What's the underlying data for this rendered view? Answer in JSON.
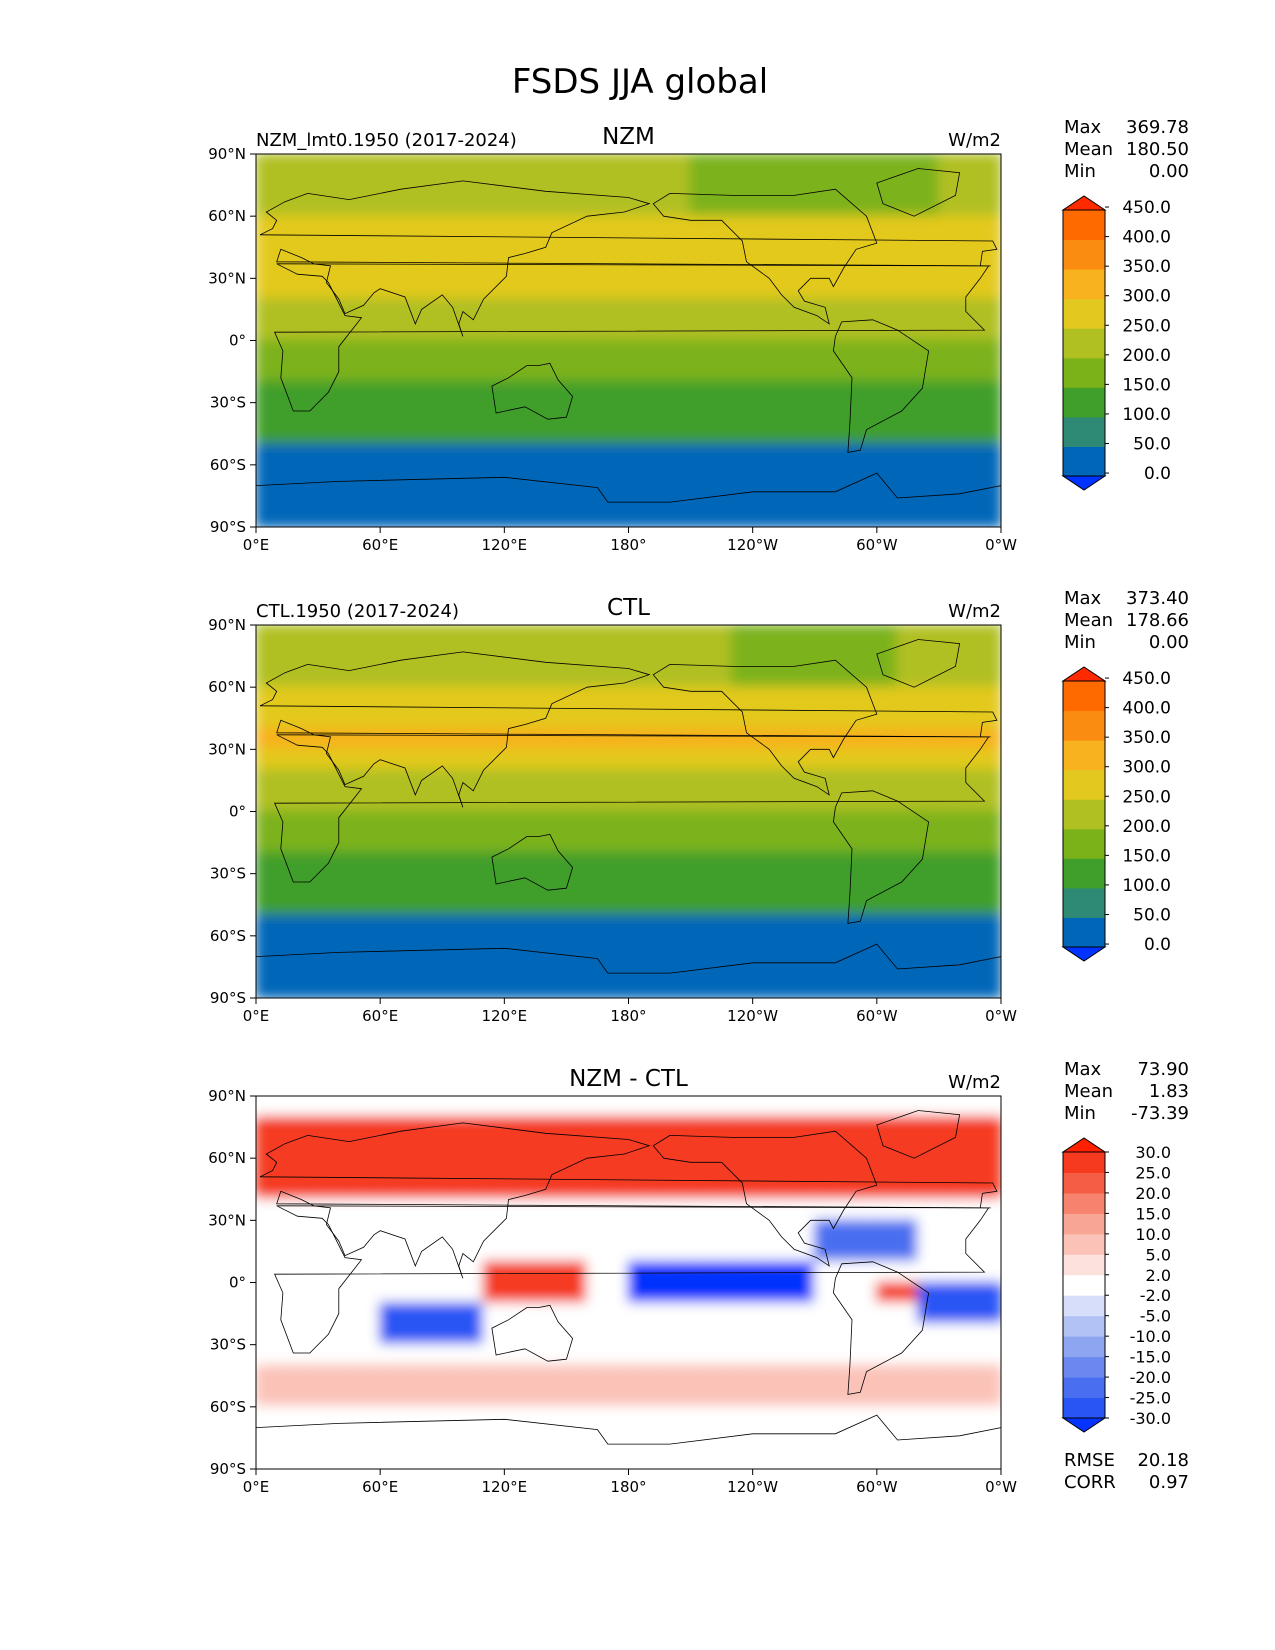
{
  "figure": {
    "title": "FSDS JJA global"
  },
  "axes": {
    "lat_ticks": [
      "90°N",
      "60°N",
      "30°N",
      "0°",
      "30°S",
      "60°S",
      "90°S"
    ],
    "lon_ticks": [
      "0°E",
      "60°E",
      "120°E",
      "180°",
      "120°W",
      "60°W",
      "0°W"
    ]
  },
  "chart_data": [
    {
      "type": "heatmap",
      "case_label": "NZM_lmt0.1950 (2017-2024)",
      "title": "NZM",
      "units": "W/m2",
      "stats": [
        {
          "label": "Max",
          "value": "369.78"
        },
        {
          "label": "Mean",
          "value": "180.50"
        },
        {
          "label": "Min",
          "value": "0.00"
        }
      ],
      "extra_stats": [],
      "colorbar": {
        "levels": [
          "0.0",
          "50.0",
          "100.0",
          "150.0",
          "200.0",
          "250.0",
          "300.0",
          "350.0",
          "400.0",
          "450.0"
        ],
        "colors": [
          "#0033ff",
          "#0066b8",
          "#2e8a74",
          "#3f9f2a",
          "#7bb21a",
          "#b0c020",
          "#e3c91f",
          "#f7b21e",
          "#fb8c12",
          "#ff6a00",
          "#ff2a00"
        ]
      }
    },
    {
      "type": "heatmap",
      "case_label": "CTL.1950 (2017-2024)",
      "title": "CTL",
      "units": "W/m2",
      "stats": [
        {
          "label": "Max",
          "value": "373.40"
        },
        {
          "label": "Mean",
          "value": "178.66"
        },
        {
          "label": "Min",
          "value": "0.00"
        }
      ],
      "extra_stats": [],
      "colorbar": {
        "levels": [
          "0.0",
          "50.0",
          "100.0",
          "150.0",
          "200.0",
          "250.0",
          "300.0",
          "350.0",
          "400.0",
          "450.0"
        ],
        "colors": [
          "#0033ff",
          "#0066b8",
          "#2e8a74",
          "#3f9f2a",
          "#7bb21a",
          "#b0c020",
          "#e3c91f",
          "#f7b21e",
          "#fb8c12",
          "#ff6a00",
          "#ff2a00"
        ]
      }
    },
    {
      "type": "heatmap",
      "case_label": "",
      "title": "NZM - CTL",
      "units": "W/m2",
      "stats": [
        {
          "label": "Max",
          "value": "73.90"
        },
        {
          "label": "Mean",
          "value": "1.83"
        },
        {
          "label": "Min",
          "value": "-73.39"
        }
      ],
      "extra_stats": [
        {
          "label": "RMSE",
          "value": "20.18"
        },
        {
          "label": "CORR",
          "value": "0.97"
        }
      ],
      "colorbar": {
        "levels": [
          "-30.0",
          "-25.0",
          "-20.0",
          "-15.0",
          "-10.0",
          "-5.0",
          "-2.0",
          "2.0",
          "5.0",
          "10.0",
          "15.0",
          "20.0",
          "25.0",
          "30.0"
        ],
        "colors": [
          "#0533ff",
          "#2a55f5",
          "#4a6ef0",
          "#6a88f0",
          "#8ea6f2",
          "#b2c2f5",
          "#d6defa",
          "#ffffff",
          "#fde1dc",
          "#fbc3b8",
          "#f9a593",
          "#f7826d",
          "#f65d45",
          "#f53a20",
          "#ff2000"
        ]
      }
    }
  ]
}
